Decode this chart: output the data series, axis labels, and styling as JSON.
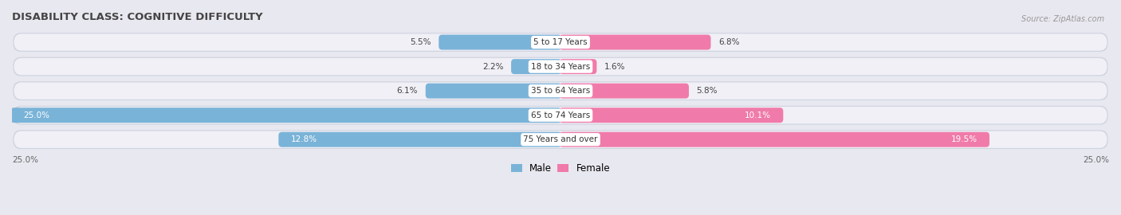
{
  "title": "DISABILITY CLASS: COGNITIVE DIFFICULTY",
  "source": "Source: ZipAtlas.com",
  "categories": [
    "5 to 17 Years",
    "18 to 34 Years",
    "35 to 64 Years",
    "65 to 74 Years",
    "75 Years and over"
  ],
  "male_values": [
    5.5,
    2.2,
    6.1,
    25.0,
    12.8
  ],
  "female_values": [
    6.8,
    1.6,
    5.8,
    10.1,
    19.5
  ],
  "max_val": 25.0,
  "male_color": "#7ab3d8",
  "female_color": "#f07baa",
  "row_outer_color": "#d0d4e0",
  "row_inner_color": "#f0f0f6",
  "title_fontsize": 9.5,
  "bar_label_fontsize": 7.5,
  "cat_label_fontsize": 7.5,
  "legend_labels": [
    "Male",
    "Female"
  ]
}
